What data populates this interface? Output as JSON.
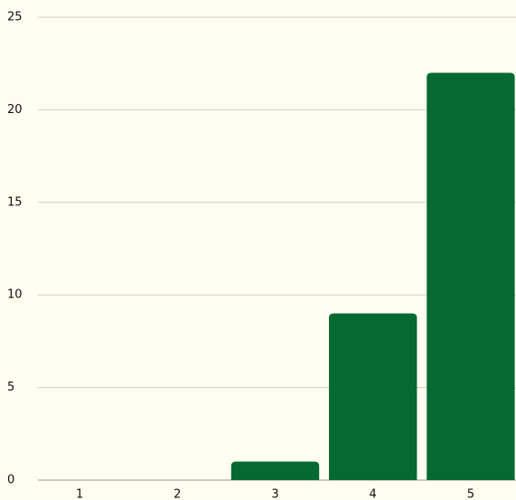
{
  "chart_data": {
    "type": "bar",
    "categories": [
      "1",
      "2",
      "3",
      "4",
      "5"
    ],
    "values": [
      0,
      0,
      1,
      9,
      22
    ],
    "color": "#056a32",
    "ylim": [
      0,
      25
    ],
    "yticks": [
      0,
      5,
      10,
      15,
      20,
      25
    ],
    "grid": true
  }
}
